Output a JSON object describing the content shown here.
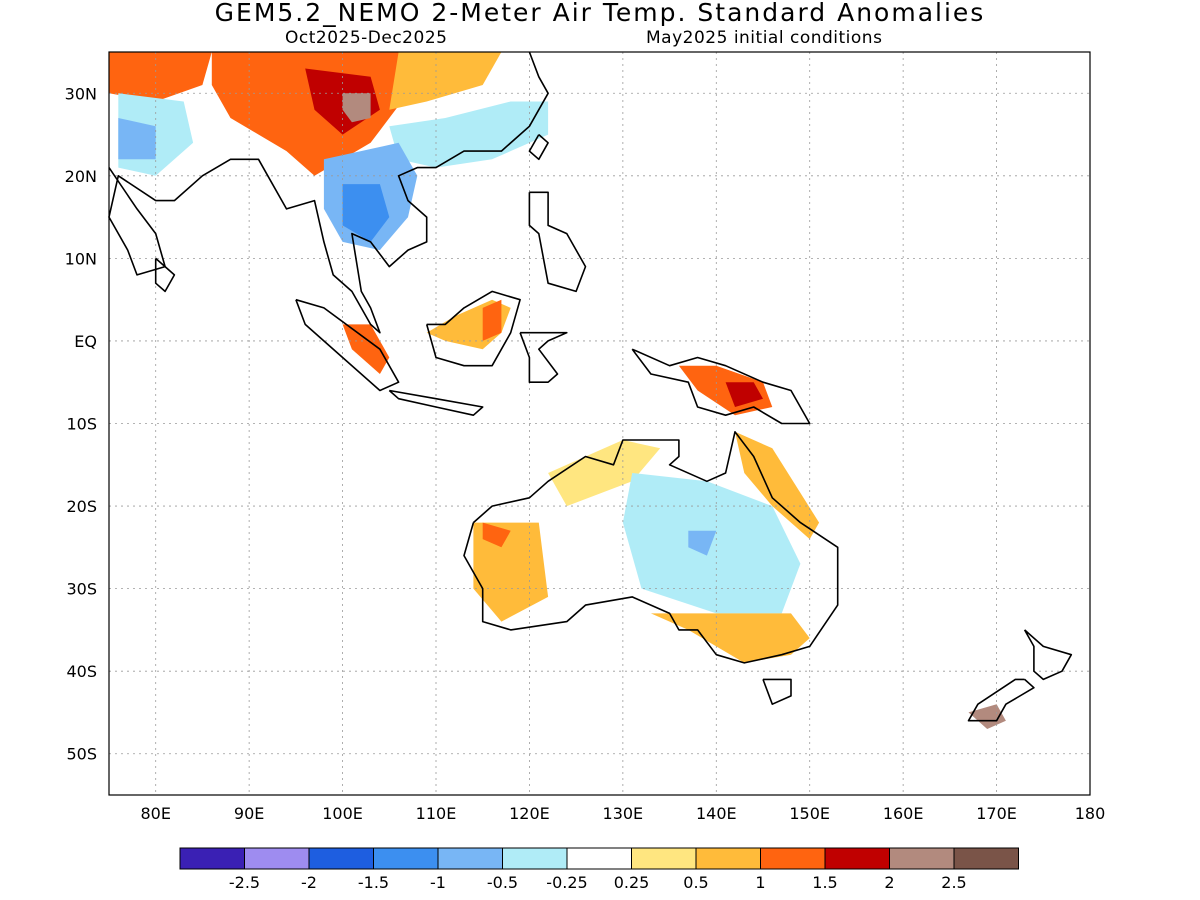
{
  "title": "GEM5.2_NEMO 2-Meter Air Temp. Standard Anomalies",
  "subtitle_left": "Oct2025-Dec2025",
  "subtitle_right": "May2025 initial conditions",
  "map": {
    "lon_range": [
      75,
      180
    ],
    "lat_range": [
      -55,
      35
    ],
    "grid": true,
    "lon_ticks": [
      {
        "value": 80,
        "label": "80E"
      },
      {
        "value": 90,
        "label": "90E"
      },
      {
        "value": 100,
        "label": "100E"
      },
      {
        "value": 110,
        "label": "110E"
      },
      {
        "value": 120,
        "label": "120E"
      },
      {
        "value": 130,
        "label": "130E"
      },
      {
        "value": 140,
        "label": "140E"
      },
      {
        "value": 150,
        "label": "150E"
      },
      {
        "value": 160,
        "label": "160E"
      },
      {
        "value": 170,
        "label": "170E"
      },
      {
        "value": 180,
        "label": "180"
      }
    ],
    "lat_ticks": [
      {
        "value": 30,
        "label": "30N"
      },
      {
        "value": 20,
        "label": "20N"
      },
      {
        "value": 10,
        "label": "10N"
      },
      {
        "value": 0,
        "label": "EQ"
      },
      {
        "value": -10,
        "label": "10S"
      },
      {
        "value": -20,
        "label": "20S"
      },
      {
        "value": -30,
        "label": "30S"
      },
      {
        "value": -40,
        "label": "40S"
      },
      {
        "value": -50,
        "label": "50S"
      }
    ]
  },
  "colorbar": {
    "colors": [
      "#3a20b4",
      "#9e8cf0",
      "#1e5ee0",
      "#3c8ff0",
      "#78b6f5",
      "#b0ecf7",
      "#ffffff",
      "#ffe680",
      "#ffbb3a",
      "#ff6410",
      "#c00000",
      "#b28a7e",
      "#7a5448"
    ],
    "labels": [
      "-2.5",
      "-2",
      "-1.5",
      "-1",
      "-0.5",
      "-0.25",
      "0.25",
      "0.5",
      "1",
      "1.5",
      "2",
      "2.5"
    ]
  },
  "regions": [
    {
      "name": "tibet-warm",
      "color": "#ff6410",
      "points": [
        [
          86,
          35
        ],
        [
          106,
          35
        ],
        [
          107,
          30
        ],
        [
          103,
          24
        ],
        [
          97,
          20
        ],
        [
          94,
          23
        ],
        [
          88,
          27
        ],
        [
          86,
          31
        ]
      ]
    },
    {
      "name": "tibet-very-warm",
      "color": "#c00000",
      "points": [
        [
          96,
          33
        ],
        [
          103,
          32
        ],
        [
          104,
          28
        ],
        [
          100,
          25
        ],
        [
          97,
          28
        ]
      ]
    },
    {
      "name": "tibet-extreme",
      "color": "#b28a7e",
      "points": [
        [
          100,
          30
        ],
        [
          103,
          30
        ],
        [
          103,
          27
        ],
        [
          101,
          26.5
        ],
        [
          100,
          28
        ]
      ]
    },
    {
      "name": "china-warm",
      "color": "#ffbb3a",
      "points": [
        [
          106,
          35
        ],
        [
          117,
          35
        ],
        [
          115,
          31
        ],
        [
          109,
          29
        ],
        [
          105,
          28
        ]
      ]
    },
    {
      "name": "nw-india-warm",
      "color": "#ff6410",
      "points": [
        [
          75,
          35
        ],
        [
          86,
          35
        ],
        [
          85,
          31
        ],
        [
          80,
          29
        ],
        [
          75,
          30
        ]
      ]
    },
    {
      "name": "south-china-cool",
      "color": "#b0ecf7",
      "points": [
        [
          105,
          26
        ],
        [
          111,
          27
        ],
        [
          118,
          29
        ],
        [
          122,
          29
        ],
        [
          122,
          25
        ],
        [
          116,
          22
        ],
        [
          110,
          21
        ],
        [
          106,
          22
        ]
      ]
    },
    {
      "name": "indochina-cool",
      "color": "#78b6f5",
      "points": [
        [
          98,
          22
        ],
        [
          106,
          24
        ],
        [
          108,
          20
        ],
        [
          107,
          15
        ],
        [
          104,
          11
        ],
        [
          100,
          12
        ],
        [
          98,
          16
        ]
      ]
    },
    {
      "name": "indochina-cooler",
      "color": "#3c8ff0",
      "points": [
        [
          100,
          19
        ],
        [
          104,
          19
        ],
        [
          105,
          15
        ],
        [
          103,
          12
        ],
        [
          100,
          14
        ]
      ]
    },
    {
      "name": "india-cool",
      "color": "#b0ecf7",
      "points": [
        [
          76,
          30
        ],
        [
          83,
          29
        ],
        [
          84,
          24
        ],
        [
          80,
          20
        ],
        [
          76,
          21
        ]
      ]
    },
    {
      "name": "india-cooler",
      "color": "#78b6f5",
      "points": [
        [
          76,
          27
        ],
        [
          80,
          26
        ],
        [
          80,
          22
        ],
        [
          76,
          22
        ]
      ]
    },
    {
      "name": "borneo-warm",
      "color": "#ffbb3a",
      "points": [
        [
          109,
          1
        ],
        [
          112,
          3
        ],
        [
          116,
          5
        ],
        [
          118,
          4
        ],
        [
          117,
          1
        ],
        [
          115,
          -1
        ],
        [
          111,
          0
        ]
      ]
    },
    {
      "name": "borneo-hot",
      "color": "#ff6410",
      "points": [
        [
          115,
          4
        ],
        [
          117,
          5
        ],
        [
          117,
          1
        ],
        [
          115,
          0
        ]
      ]
    },
    {
      "name": "sumatra-warm",
      "color": "#ff6410",
      "points": [
        [
          100,
          2
        ],
        [
          103,
          2
        ],
        [
          105,
          -2
        ],
        [
          104,
          -4
        ],
        [
          101,
          -1
        ]
      ]
    },
    {
      "name": "new-guinea-warm",
      "color": "#ff6410",
      "points": [
        [
          136,
          -3
        ],
        [
          140,
          -3
        ],
        [
          145,
          -5
        ],
        [
          146,
          -8
        ],
        [
          142,
          -9
        ],
        [
          138,
          -6
        ]
      ]
    },
    {
      "name": "new-guinea-hot",
      "color": "#c00000",
      "points": [
        [
          141,
          -5
        ],
        [
          144,
          -5
        ],
        [
          145,
          -7
        ],
        [
          142,
          -8
        ]
      ]
    },
    {
      "name": "w-australia-warm",
      "color": "#ffbb3a",
      "points": [
        [
          114,
          -22
        ],
        [
          121,
          -22
        ],
        [
          122,
          -31
        ],
        [
          117,
          -34
        ],
        [
          114,
          -30
        ]
      ]
    },
    {
      "name": "w-australia-hot",
      "color": "#ff6410",
      "points": [
        [
          115,
          -22
        ],
        [
          118,
          -23
        ],
        [
          117,
          -25
        ],
        [
          115,
          -24
        ]
      ]
    },
    {
      "name": "n-australia-warm",
      "color": "#ffe680",
      "points": [
        [
          122,
          -16
        ],
        [
          130,
          -12
        ],
        [
          134,
          -13
        ],
        [
          131,
          -17
        ],
        [
          124,
          -20
        ]
      ]
    },
    {
      "name": "central-australia-cool",
      "color": "#b0ecf7",
      "points": [
        [
          131,
          -16
        ],
        [
          139,
          -17
        ],
        [
          146,
          -20
        ],
        [
          149,
          -27
        ],
        [
          147,
          -33
        ],
        [
          140,
          -33
        ],
        [
          132,
          -30
        ],
        [
          130,
          -22
        ]
      ]
    },
    {
      "name": "central-australia-cooler",
      "color": "#78b6f5",
      "points": [
        [
          137,
          -23
        ],
        [
          140,
          -23
        ],
        [
          139,
          -26
        ],
        [
          137,
          -25
        ]
      ]
    },
    {
      "name": "se-australia-warm",
      "color": "#ffbb3a",
      "points": [
        [
          133,
          -33
        ],
        [
          148,
          -33
        ],
        [
          150,
          -36
        ],
        [
          148,
          -38
        ],
        [
          143,
          -39
        ],
        [
          137,
          -35
        ]
      ]
    },
    {
      "name": "e-australia-warm",
      "color": "#ffbb3a",
      "points": [
        [
          142,
          -11
        ],
        [
          146,
          -13
        ],
        [
          151,
          -22
        ],
        [
          150,
          -24
        ],
        [
          146,
          -20
        ],
        [
          143,
          -16
        ]
      ]
    },
    {
      "name": "nz-warm",
      "color": "#b28a7e",
      "points": [
        [
          167,
          -45
        ],
        [
          170,
          -44
        ],
        [
          171,
          -46
        ],
        [
          169,
          -47
        ]
      ]
    }
  ],
  "coastlines": [
    {
      "name": "asia-coast",
      "points": [
        [
          75,
          21
        ],
        [
          78,
          16
        ],
        [
          80,
          13
        ],
        [
          81,
          9
        ],
        [
          78,
          8
        ],
        [
          77,
          11
        ],
        [
          75,
          15
        ],
        [
          76,
          20
        ],
        [
          80,
          17
        ],
        [
          82,
          17
        ],
        [
          85,
          20
        ],
        [
          88,
          22
        ],
        [
          91,
          22
        ],
        [
          92,
          20
        ],
        [
          94,
          16
        ],
        [
          97,
          17
        ],
        [
          98,
          12
        ],
        [
          99,
          8
        ],
        [
          101,
          6
        ],
        [
          103,
          2
        ],
        [
          104,
          1
        ],
        [
          103,
          4
        ],
        [
          102,
          6
        ],
        [
          101,
          13
        ],
        [
          103,
          12
        ],
        [
          105,
          9
        ],
        [
          107,
          11
        ],
        [
          109,
          12
        ],
        [
          109,
          15
        ],
        [
          107,
          17
        ],
        [
          106,
          20
        ],
        [
          108,
          21
        ],
        [
          110,
          21
        ],
        [
          113,
          23
        ],
        [
          117,
          23
        ],
        [
          120,
          26
        ],
        [
          122,
          30
        ],
        [
          121,
          32
        ],
        [
          120,
          35
        ]
      ]
    },
    {
      "name": "sri-lanka",
      "points": [
        [
          80,
          10
        ],
        [
          82,
          8
        ],
        [
          81,
          6
        ],
        [
          80,
          7
        ],
        [
          80,
          10
        ]
      ]
    },
    {
      "name": "sumatra",
      "points": [
        [
          95,
          5
        ],
        [
          98,
          4
        ],
        [
          104,
          -1
        ],
        [
          106,
          -5
        ],
        [
          104,
          -6
        ],
        [
          100,
          -2
        ],
        [
          96,
          2
        ],
        [
          95,
          5
        ]
      ]
    },
    {
      "name": "borneo",
      "points": [
        [
          109,
          2
        ],
        [
          111,
          2
        ],
        [
          113,
          4
        ],
        [
          116,
          6
        ],
        [
          119,
          5
        ],
        [
          118,
          1
        ],
        [
          116,
          -3
        ],
        [
          113,
          -3
        ],
        [
          110,
          -2
        ],
        [
          109,
          2
        ]
      ]
    },
    {
      "name": "java",
      "points": [
        [
          105,
          -6
        ],
        [
          110,
          -7
        ],
        [
          115,
          -8
        ],
        [
          114,
          -9
        ],
        [
          110,
          -8
        ],
        [
          106,
          -7
        ],
        [
          105,
          -6
        ]
      ]
    },
    {
      "name": "sulawesi",
      "points": [
        [
          119,
          1
        ],
        [
          124,
          1
        ],
        [
          122,
          0
        ],
        [
          121,
          -1
        ],
        [
          123,
          -4
        ],
        [
          122,
          -5
        ],
        [
          120,
          -5
        ],
        [
          120,
          -2
        ],
        [
          119,
          1
        ]
      ]
    },
    {
      "name": "philippines",
      "points": [
        [
          120,
          18
        ],
        [
          122,
          18
        ],
        [
          122,
          14
        ],
        [
          124,
          13
        ],
        [
          126,
          9
        ],
        [
          125,
          6
        ],
        [
          122,
          7
        ],
        [
          121,
          13
        ],
        [
          120,
          14
        ],
        [
          120,
          18
        ]
      ]
    },
    {
      "name": "taiwan",
      "points": [
        [
          121,
          25
        ],
        [
          122,
          24
        ],
        [
          121,
          22
        ],
        [
          120,
          23
        ],
        [
          121,
          25
        ]
      ]
    },
    {
      "name": "new-guinea",
      "points": [
        [
          131,
          -1
        ],
        [
          135,
          -3
        ],
        [
          138,
          -2
        ],
        [
          141,
          -3
        ],
        [
          145,
          -5
        ],
        [
          148,
          -6
        ],
        [
          150,
          -10
        ],
        [
          147,
          -10
        ],
        [
          144,
          -8
        ],
        [
          141,
          -9
        ],
        [
          138,
          -8
        ],
        [
          137,
          -5
        ],
        [
          133,
          -4
        ],
        [
          131,
          -1
        ]
      ]
    },
    {
      "name": "australia",
      "points": [
        [
          114,
          -22
        ],
        [
          116,
          -20
        ],
        [
          120,
          -19
        ],
        [
          122,
          -17
        ],
        [
          126,
          -14
        ],
        [
          129,
          -15
        ],
        [
          130,
          -12
        ],
        [
          133,
          -12
        ],
        [
          136,
          -12
        ],
        [
          136,
          -14
        ],
        [
          135,
          -15
        ],
        [
          139,
          -17
        ],
        [
          141,
          -16
        ],
        [
          142,
          -11
        ],
        [
          144,
          -14
        ],
        [
          146,
          -19
        ],
        [
          149,
          -22
        ],
        [
          153,
          -25
        ],
        [
          153,
          -28
        ],
        [
          153,
          -32
        ],
        [
          150,
          -37
        ],
        [
          147,
          -38
        ],
        [
          143,
          -39
        ],
        [
          140,
          -38
        ],
        [
          138,
          -35
        ],
        [
          136,
          -35
        ],
        [
          135,
          -33
        ],
        [
          131,
          -31
        ],
        [
          126,
          -32
        ],
        [
          124,
          -34
        ],
        [
          118,
          -35
        ],
        [
          115,
          -34
        ],
        [
          115,
          -30
        ],
        [
          113,
          -26
        ],
        [
          114,
          -22
        ]
      ]
    },
    {
      "name": "tasmania",
      "points": [
        [
          145,
          -41
        ],
        [
          148,
          -41
        ],
        [
          148,
          -43
        ],
        [
          146,
          -44
        ],
        [
          145,
          -41
        ]
      ]
    },
    {
      "name": "nz-north",
      "points": [
        [
          173,
          -35
        ],
        [
          175,
          -37
        ],
        [
          178,
          -38
        ],
        [
          177,
          -40
        ],
        [
          175,
          -41
        ],
        [
          174,
          -40
        ],
        [
          174,
          -37
        ],
        [
          173,
          -35
        ]
      ]
    },
    {
      "name": "nz-south",
      "points": [
        [
          173,
          -41
        ],
        [
          174,
          -42
        ],
        [
          171,
          -44
        ],
        [
          170,
          -46
        ],
        [
          167,
          -46
        ],
        [
          168,
          -44
        ],
        [
          172,
          -41
        ],
        [
          173,
          -41
        ]
      ]
    }
  ]
}
